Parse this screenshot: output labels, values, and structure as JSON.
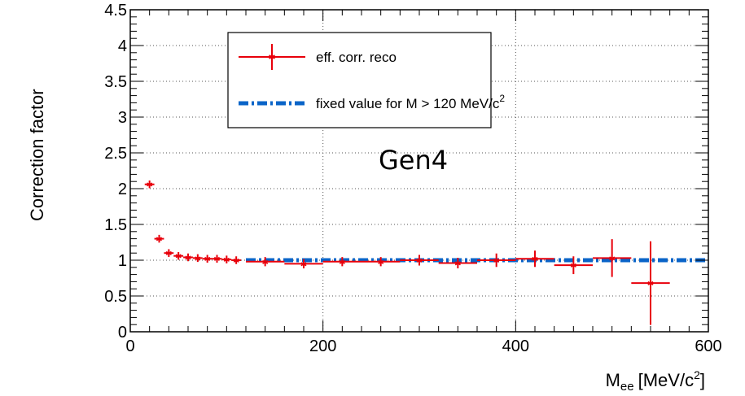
{
  "chart_data": {
    "type": "scatter",
    "title": "",
    "xlabel": "M",
    "xlabel_sub": "ee",
    "xlabel_unit_pre": "[MeV/c",
    "xlabel_unit_sup": "2",
    "xlabel_unit_post": "]",
    "ylabel": "Correction factor",
    "xlim": [
      0,
      600
    ],
    "ylim": [
      0,
      4.5
    ],
    "x_ticks": [
      0,
      200,
      400,
      600
    ],
    "y_ticks": [
      0,
      0.5,
      1,
      1.5,
      2,
      2.5,
      3,
      3.5,
      4,
      4.5
    ],
    "y_tick_labels": [
      "0",
      "0.5",
      "1",
      "1.5",
      "2",
      "2.5",
      "3",
      "3.5",
      "4",
      "4.5"
    ],
    "grid": true,
    "annotation": "Gen4",
    "legend_position": "top-center",
    "series": [
      {
        "name": "eff. corr. reco",
        "color": "#e8000b",
        "points": [
          {
            "x": 20,
            "xerr": 5,
            "y": 2.06,
            "yerr": 0.02
          },
          {
            "x": 30,
            "xerr": 5,
            "y": 1.3,
            "yerr": 0.02
          },
          {
            "x": 40,
            "xerr": 5,
            "y": 1.1,
            "yerr": 0.02
          },
          {
            "x": 50,
            "xerr": 5,
            "y": 1.06,
            "yerr": 0.02
          },
          {
            "x": 60,
            "xerr": 5,
            "y": 1.04,
            "yerr": 0.02
          },
          {
            "x": 70,
            "xerr": 5,
            "y": 1.03,
            "yerr": 0.02
          },
          {
            "x": 80,
            "xerr": 5,
            "y": 1.02,
            "yerr": 0.02
          },
          {
            "x": 90,
            "xerr": 5,
            "y": 1.02,
            "yerr": 0.02
          },
          {
            "x": 100,
            "xerr": 5,
            "y": 1.01,
            "yerr": 0.02
          },
          {
            "x": 110,
            "xerr": 5,
            "y": 1.0,
            "yerr": 0.02
          },
          {
            "x": 140,
            "xerr": 20,
            "y": 0.98,
            "yerr": 0.03
          },
          {
            "x": 180,
            "xerr": 20,
            "y": 0.95,
            "yerr": 0.03
          },
          {
            "x": 220,
            "xerr": 20,
            "y": 0.98,
            "yerr": 0.03
          },
          {
            "x": 260,
            "xerr": 20,
            "y": 0.98,
            "yerr": 0.03
          },
          {
            "x": 300,
            "xerr": 20,
            "y": 1.0,
            "yerr": 0.04
          },
          {
            "x": 340,
            "xerr": 20,
            "y": 0.96,
            "yerr": 0.04
          },
          {
            "x": 380,
            "xerr": 20,
            "y": 1.0,
            "yerr": 0.06
          },
          {
            "x": 420,
            "xerr": 20,
            "y": 1.02,
            "yerr": 0.08
          },
          {
            "x": 460,
            "xerr": 20,
            "y": 0.93,
            "yerr": 0.09
          },
          {
            "x": 500,
            "xerr": 20,
            "y": 1.03,
            "yerr": 0.23
          },
          {
            "x": 540,
            "xerr": 20,
            "y": 0.68,
            "yerr": 0.55
          }
        ]
      },
      {
        "name_pre": "fixed value for M > 120 MeV/c",
        "name_sup": "2",
        "color": "#0a64c8",
        "x": [
          120,
          600
        ],
        "y": [
          1,
          1
        ]
      }
    ]
  }
}
